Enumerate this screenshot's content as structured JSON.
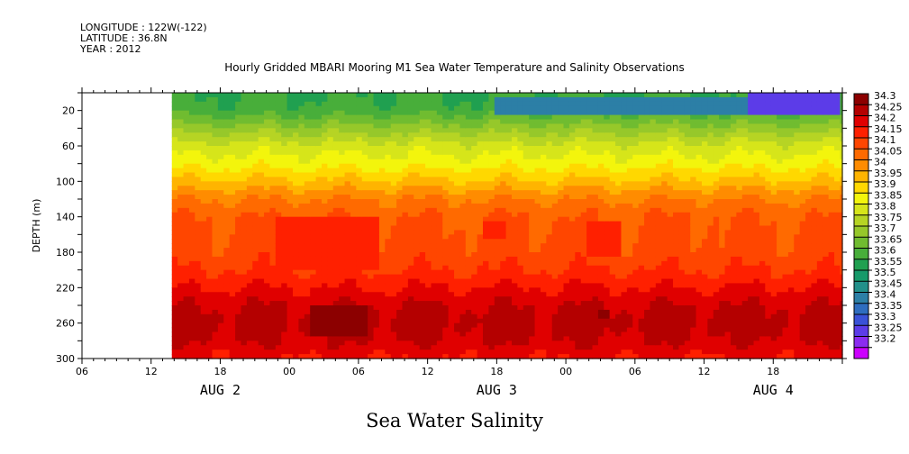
{
  "header": {
    "longitude": "LONGITUDE : 122W(-122)",
    "latitude": "LATITUDE : 36.8N",
    "year": "YEAR : 2012",
    "title": "Hourly Gridded MBARI Mooring M1 Sea Water Temperature and Salinity Observations",
    "bottom_title": "Sea Water Salinity"
  },
  "chart_data": {
    "type": "heatmap",
    "title": "Hourly Gridded MBARI Mooring M1 Sea Water Temperature and Salinity Observations",
    "subtitle": "Sea Water Salinity",
    "xlabel": "",
    "ylabel": "DEPTH (m)",
    "x_ticks": [
      "06",
      "12",
      "18",
      "00",
      "06",
      "12",
      "18",
      "00",
      "06",
      "12",
      "18"
    ],
    "date_labels": [
      "AUG  2",
      "AUG  3",
      "AUG  4"
    ],
    "x_range_hours": [
      0,
      66
    ],
    "data_start_hour": 7.8,
    "y_ticks": [
      20,
      60,
      100,
      140,
      180,
      220,
      260,
      300
    ],
    "y_range": [
      300,
      0
    ],
    "y_reversed": true,
    "colorbar": {
      "levels": [
        33.2,
        33.25,
        33.3,
        33.35,
        33.4,
        33.45,
        33.5,
        33.55,
        33.6,
        33.65,
        33.7,
        33.75,
        33.8,
        33.85,
        33.9,
        33.95,
        34,
        34.05,
        34.1,
        34.15,
        34.2,
        34.25,
        34.3
      ],
      "labels": [
        "34.3",
        "34.25",
        "34.2",
        "34.15",
        "34.1",
        "34.05",
        "34",
        "33.95",
        "33.9",
        "33.85",
        "33.8",
        "33.75",
        "33.7",
        "33.65",
        "33.6",
        "33.55",
        "33.5",
        "33.45",
        "33.4",
        "33.35",
        "33.3",
        "33.25",
        "33.2"
      ],
      "colors": [
        "#cc00ff",
        "#8b2bf0",
        "#5c3ce8",
        "#3a52d8",
        "#2e6dbf",
        "#2c7fa6",
        "#22908a",
        "#179a6a",
        "#20a050",
        "#48ae3a",
        "#70bc30",
        "#96c82a",
        "#b6d424",
        "#d6e51a",
        "#f3f50c",
        "#ffd800",
        "#ffb400",
        "#ff8c00",
        "#ff6a00",
        "#ff4600",
        "#ff2000",
        "#e00000",
        "#b40000",
        "#8c0000"
      ]
    },
    "profile": [
      {
        "depth": 5,
        "salinity": 33.6
      },
      {
        "depth": 20,
        "salinity": 33.62
      },
      {
        "depth": 40,
        "salinity": 33.72
      },
      {
        "depth": 60,
        "salinity": 33.82
      },
      {
        "depth": 80,
        "salinity": 33.88
      },
      {
        "depth": 100,
        "salinity": 33.96
      },
      {
        "depth": 120,
        "salinity": 34.05
      },
      {
        "depth": 140,
        "salinity": 34.1
      },
      {
        "depth": 180,
        "salinity": 34.12
      },
      {
        "depth": 200,
        "salinity": 34.15
      },
      {
        "depth": 220,
        "salinity": 34.2
      },
      {
        "depth": 240,
        "salinity": 34.25
      },
      {
        "depth": 260,
        "salinity": 34.27
      },
      {
        "depth": 280,
        "salinity": 34.25
      },
      {
        "depth": 300,
        "salinity": 34.2
      }
    ],
    "features": [
      {
        "name": "surface-fresh-band",
        "hour_start": 58,
        "hour_end": 66,
        "depth_start": 0,
        "depth_end": 25,
        "salinity": 33.25
      },
      {
        "name": "surface-mid-band",
        "hour_start": 36,
        "hour_end": 58,
        "depth_start": 5,
        "depth_end": 25,
        "salinity": 33.4
      },
      {
        "name": "mid-high-patch-1",
        "hour_start": 17,
        "hour_end": 26,
        "depth_start": 140,
        "depth_end": 200,
        "salinity": 34.15
      },
      {
        "name": "mid-high-patch-2",
        "hour_start": 35,
        "hour_end": 37,
        "depth_start": 145,
        "depth_end": 165,
        "salinity": 34.15
      },
      {
        "name": "mid-high-patch-3",
        "hour_start": 44,
        "hour_end": 47,
        "depth_start": 145,
        "depth_end": 185,
        "salinity": 34.15
      },
      {
        "name": "deep-max-patch",
        "hour_start": 20,
        "hour_end": 25,
        "depth_start": 240,
        "depth_end": 275,
        "salinity": 34.3
      },
      {
        "name": "deep-max-patch-2",
        "hour_start": 45,
        "hour_end": 46,
        "depth_start": 245,
        "depth_end": 255,
        "salinity": 34.3
      }
    ]
  }
}
